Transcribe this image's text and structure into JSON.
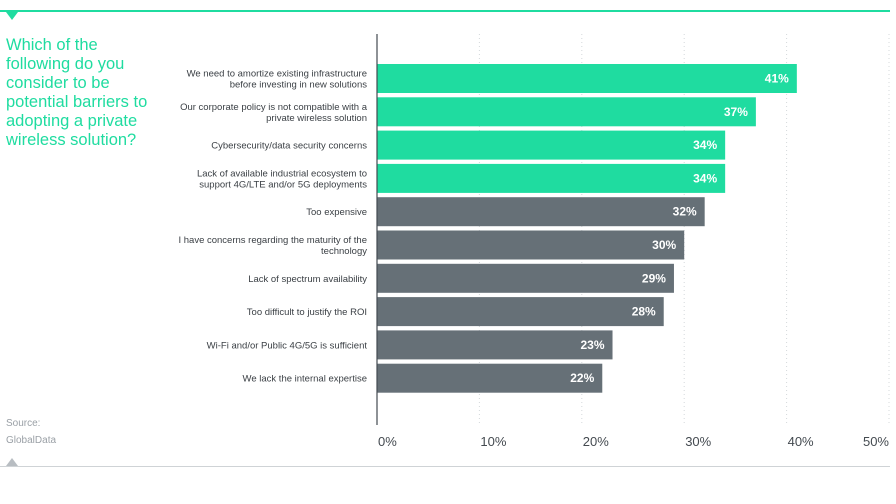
{
  "question": "Which of the following do you consider to be potential barriers to adopting a private wireless solution?",
  "source": {
    "label": "Source:",
    "name": "GlobalData"
  },
  "colors": {
    "highlight": "#1fdca0",
    "default": "#667077",
    "axis": "#444a50",
    "grid": "#d4d8db"
  },
  "icons": {
    "top": "triangle-down-icon",
    "bottom": "triangle-up-icon"
  },
  "chart_data": {
    "type": "bar",
    "orientation": "horizontal",
    "categories": [
      [
        "We need to amortize existing infrastructure",
        "before investing in new solutions"
      ],
      [
        "Our corporate policy is not compatible with a",
        "private wireless solution"
      ],
      [
        "Cybersecurity/data security concerns"
      ],
      [
        "Lack of available industrial ecosystem to",
        "support 4G/LTE and/or 5G deployments"
      ],
      [
        "Too expensive"
      ],
      [
        "I have concerns regarding the maturity of the",
        "technology"
      ],
      [
        "Lack of spectrum availability"
      ],
      [
        "Too difficult to justify the ROI"
      ],
      [
        "Wi-Fi and/or Public 4G/5G is sufficient"
      ],
      [
        "We lack the internal expertise"
      ]
    ],
    "values": [
      41,
      37,
      34,
      34,
      32,
      30,
      29,
      28,
      23,
      22
    ],
    "value_labels": [
      "41%",
      "37%",
      "34%",
      "34%",
      "32%",
      "30%",
      "29%",
      "28%",
      "23%",
      "22%"
    ],
    "highlighted": [
      true,
      true,
      true,
      true,
      false,
      false,
      false,
      false,
      false,
      false
    ],
    "xlim": [
      0,
      50
    ],
    "xticks": [
      0,
      10,
      20,
      30,
      40,
      50
    ],
    "xtick_labels": [
      "0%",
      "10%",
      "20%",
      "30%",
      "40%",
      "50%"
    ],
    "grid": "vertical dotted"
  }
}
